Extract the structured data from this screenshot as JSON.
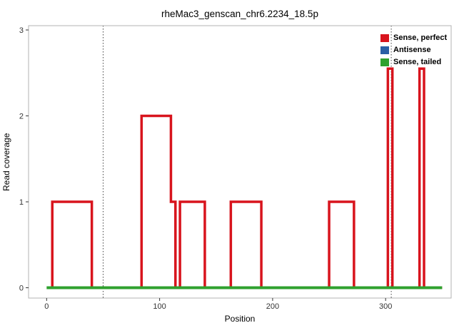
{
  "chart_data": {
    "type": "line",
    "title": "rheMac3_genscan_chr6.2234_18.5p",
    "xlabel": "Position",
    "ylabel": "Read coverage",
    "xlim": [
      -16,
      358
    ],
    "ylim": [
      -0.12,
      3.05
    ],
    "x_ticks": [
      0,
      100,
      200,
      300
    ],
    "y_ticks": [
      0,
      1,
      2,
      3
    ],
    "grid": false,
    "vlines": [
      50,
      305
    ],
    "panel_border_color": "#b3b3b3",
    "vline_color": "#444444",
    "series": [
      {
        "name": "Sense, perfect",
        "color": "#d8141d",
        "width": 3.5,
        "points": [
          [
            5,
            0
          ],
          [
            5,
            1
          ],
          [
            40,
            1
          ],
          [
            40,
            0
          ],
          [
            84,
            0
          ],
          [
            84,
            2
          ],
          [
            110,
            2
          ],
          [
            110,
            1
          ],
          [
            114,
            1
          ],
          [
            114,
            0
          ],
          [
            118,
            0
          ],
          [
            118,
            1
          ],
          [
            140,
            1
          ],
          [
            140,
            0
          ],
          [
            163,
            0
          ],
          [
            163,
            1
          ],
          [
            190,
            1
          ],
          [
            190,
            0
          ],
          [
            250,
            0
          ],
          [
            250,
            1
          ],
          [
            272,
            1
          ],
          [
            272,
            0
          ],
          [
            302,
            0
          ],
          [
            302,
            2.55
          ],
          [
            306,
            2.55
          ],
          [
            306,
            0
          ],
          [
            330,
            0
          ],
          [
            330,
            2.55
          ],
          [
            334,
            2.55
          ],
          [
            334,
            0
          ],
          [
            350,
            0
          ]
        ]
      },
      {
        "name": "Antisense",
        "color": "#2a5fa5",
        "width": 3.5,
        "points": []
      },
      {
        "name": "Sense, tailed",
        "color": "#2fa12e",
        "width": 4,
        "points": [
          [
            0,
            0
          ],
          [
            350,
            0
          ]
        ]
      }
    ],
    "legend": {
      "position": "top-right"
    }
  }
}
